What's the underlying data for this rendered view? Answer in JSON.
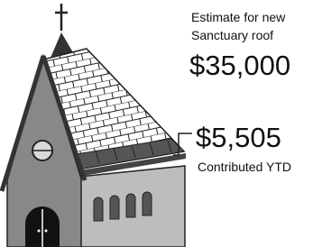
{
  "goal": {
    "caption_line1": "Estimate for new",
    "caption_line2": "Sanctuary roof",
    "amount": "$35,000"
  },
  "progress": {
    "amount": "$5,505",
    "caption": "Contributed YTD"
  }
}
